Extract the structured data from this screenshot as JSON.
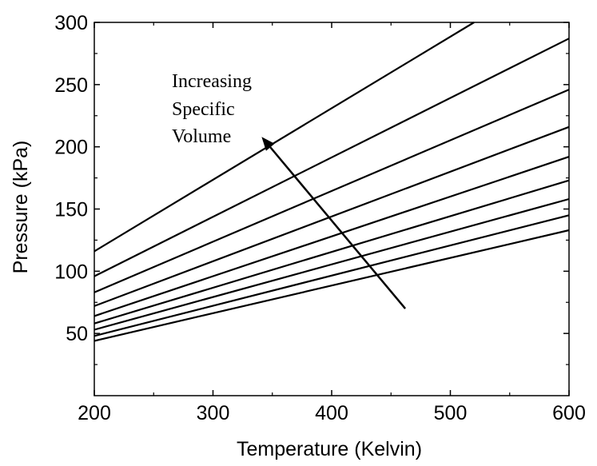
{
  "chart_data": {
    "type": "line",
    "title": "",
    "xlabel": "Temperature (Kelvin)",
    "ylabel": "Pressure (kPa)",
    "xlim": [
      200,
      600
    ],
    "ylim": [
      0,
      300
    ],
    "x_ticks": [
      200,
      300,
      400,
      500,
      600
    ],
    "y_ticks": [
      50,
      100,
      150,
      200,
      250,
      300
    ],
    "grid": false,
    "legend": "none",
    "line_color": "#000000",
    "series": [
      {
        "x": [
          200,
          520
        ],
        "y": [
          116,
          300
        ]
      },
      {
        "x": [
          200,
          600
        ],
        "y": [
          96,
          287
        ]
      },
      {
        "x": [
          200,
          600
        ],
        "y": [
          83,
          246
        ]
      },
      {
        "x": [
          200,
          600
        ],
        "y": [
          72,
          216
        ]
      },
      {
        "x": [
          200,
          600
        ],
        "y": [
          64,
          192
        ]
      },
      {
        "x": [
          200,
          600
        ],
        "y": [
          58,
          173
        ]
      },
      {
        "x": [
          200,
          600
        ],
        "y": [
          53,
          158
        ]
      },
      {
        "x": [
          200,
          600
        ],
        "y": [
          48,
          145
        ]
      },
      {
        "x": [
          200,
          600
        ],
        "y": [
          44,
          133
        ]
      }
    ],
    "annotation": {
      "lines": [
        "Increasing",
        "Specific",
        "Volume"
      ],
      "arrow_from": [
        462,
        70
      ],
      "arrow_to": [
        341,
        208
      ]
    }
  }
}
